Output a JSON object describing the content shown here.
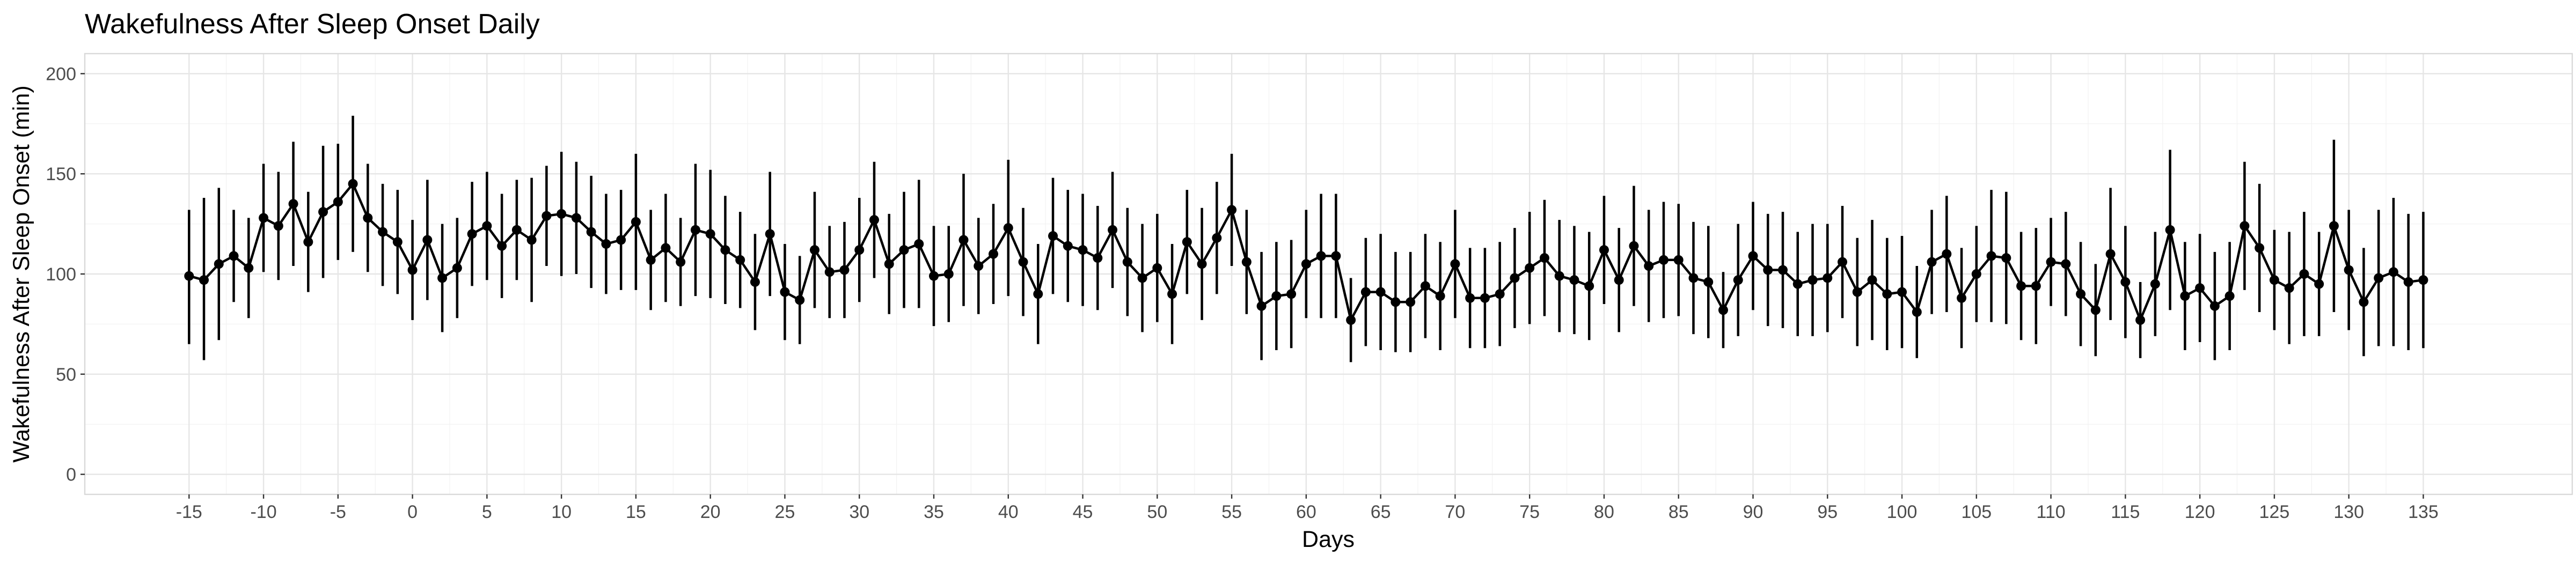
{
  "chart_data": {
    "type": "line",
    "title": "Wakefulness After Sleep Onset Daily",
    "xlabel": "Days",
    "ylabel": "Wakefulness After Sleep Onset (min)",
    "xlim": [
      -22,
      145
    ],
    "ylim": [
      -10,
      210
    ],
    "x_ticks": [
      -15,
      -10,
      -5,
      0,
      5,
      10,
      15,
      20,
      25,
      30,
      35,
      40,
      45,
      50,
      55,
      60,
      65,
      70,
      75,
      80,
      85,
      90,
      95,
      100,
      105,
      110,
      115,
      120,
      125,
      130,
      135
    ],
    "y_ticks": [
      0,
      50,
      100,
      150,
      200
    ],
    "grid": true,
    "legend": "none",
    "series": [
      {
        "error_bars": "vertical",
        "x_start": -15,
        "x_step": 1,
        "values": [
          99,
          97,
          105,
          109,
          103,
          128,
          124,
          135,
          116,
          131,
          136,
          145,
          128,
          121,
          116,
          102,
          117,
          98,
          103,
          120,
          124,
          114,
          122,
          117,
          129,
          130,
          128,
          121,
          115,
          117,
          126,
          107,
          113,
          106,
          122,
          120,
          112,
          107,
          96,
          120,
          91,
          87,
          112,
          101,
          102,
          112,
          127,
          105,
          112,
          115,
          99,
          100,
          117,
          104,
          110,
          123,
          106,
          90,
          119,
          114,
          112,
          108,
          122,
          106,
          98,
          103,
          90,
          116,
          105,
          118,
          132,
          106,
          84,
          89,
          90,
          105,
          109,
          109,
          77,
          91,
          91,
          86,
          86,
          94,
          89,
          105,
          88,
          88,
          90,
          98,
          103,
          108,
          99,
          97,
          94,
          112,
          97,
          114,
          104,
          107,
          107,
          98,
          96,
          82,
          97,
          109,
          102,
          102,
          95,
          97,
          98,
          106,
          91,
          97,
          90,
          91,
          81,
          106,
          110,
          88,
          100,
          109,
          108,
          94,
          94,
          106,
          105,
          90,
          82,
          110,
          96,
          77,
          95,
          122,
          89,
          93,
          84,
          89,
          124,
          113,
          97,
          93,
          100,
          95,
          124,
          102,
          86,
          98,
          101,
          96,
          97
        ],
        "upper": [
          132,
          138,
          143,
          132,
          128,
          155,
          151,
          166,
          141,
          164,
          165,
          179,
          155,
          145,
          142,
          127,
          147,
          125,
          128,
          146,
          151,
          140,
          147,
          148,
          154,
          161,
          156,
          149,
          140,
          142,
          160,
          132,
          140,
          128,
          155,
          152,
          139,
          131,
          120,
          151,
          115,
          109,
          141,
          124,
          126,
          138,
          156,
          130,
          141,
          147,
          124,
          124,
          150,
          128,
          135,
          157,
          133,
          115,
          148,
          142,
          140,
          134,
          151,
          133,
          125,
          130,
          115,
          142,
          133,
          146,
          160,
          132,
          111,
          116,
          117,
          132,
          140,
          140,
          98,
          118,
          120,
          111,
          111,
          120,
          116,
          132,
          113,
          113,
          116,
          123,
          131,
          137,
          127,
          124,
          121,
          139,
          123,
          144,
          132,
          136,
          135,
          126,
          124,
          101,
          125,
          136,
          130,
          131,
          121,
          125,
          125,
          134,
          118,
          127,
          118,
          119,
          104,
          132,
          139,
          113,
          124,
          142,
          141,
          121,
          123,
          128,
          131,
          116,
          105,
          143,
          124,
          96,
          121,
          162,
          116,
          120,
          111,
          116,
          156,
          145,
          122,
          121,
          131,
          121,
          167,
          132,
          113,
          132,
          138,
          130,
          131
        ],
        "lower": [
          65,
          57,
          67,
          86,
          78,
          101,
          97,
          104,
          91,
          98,
          107,
          111,
          101,
          94,
          90,
          77,
          87,
          71,
          78,
          94,
          97,
          88,
          97,
          86,
          104,
          99,
          100,
          93,
          90,
          92,
          92,
          82,
          86,
          84,
          89,
          88,
          85,
          83,
          72,
          89,
          67,
          65,
          83,
          78,
          78,
          86,
          98,
          80,
          83,
          83,
          74,
          76,
          84,
          80,
          85,
          89,
          79,
          65,
          90,
          86,
          84,
          82,
          93,
          79,
          71,
          76,
          65,
          90,
          77,
          90,
          104,
          80,
          57,
          62,
          63,
          78,
          78,
          78,
          56,
          64,
          62,
          61,
          61,
          68,
          62,
          78,
          63,
          63,
          64,
          73,
          75,
          79,
          71,
          70,
          67,
          85,
          71,
          84,
          76,
          78,
          79,
          70,
          68,
          63,
          69,
          82,
          74,
          73,
          69,
          69,
          71,
          78,
          64,
          67,
          62,
          63,
          58,
          80,
          81,
          63,
          76,
          76,
          75,
          67,
          65,
          84,
          79,
          64,
          59,
          77,
          68,
          58,
          69,
          82,
          62,
          66,
          57,
          62,
          92,
          81,
          72,
          65,
          69,
          69,
          81,
          72,
          59,
          64,
          64,
          62,
          63
        ]
      }
    ]
  }
}
